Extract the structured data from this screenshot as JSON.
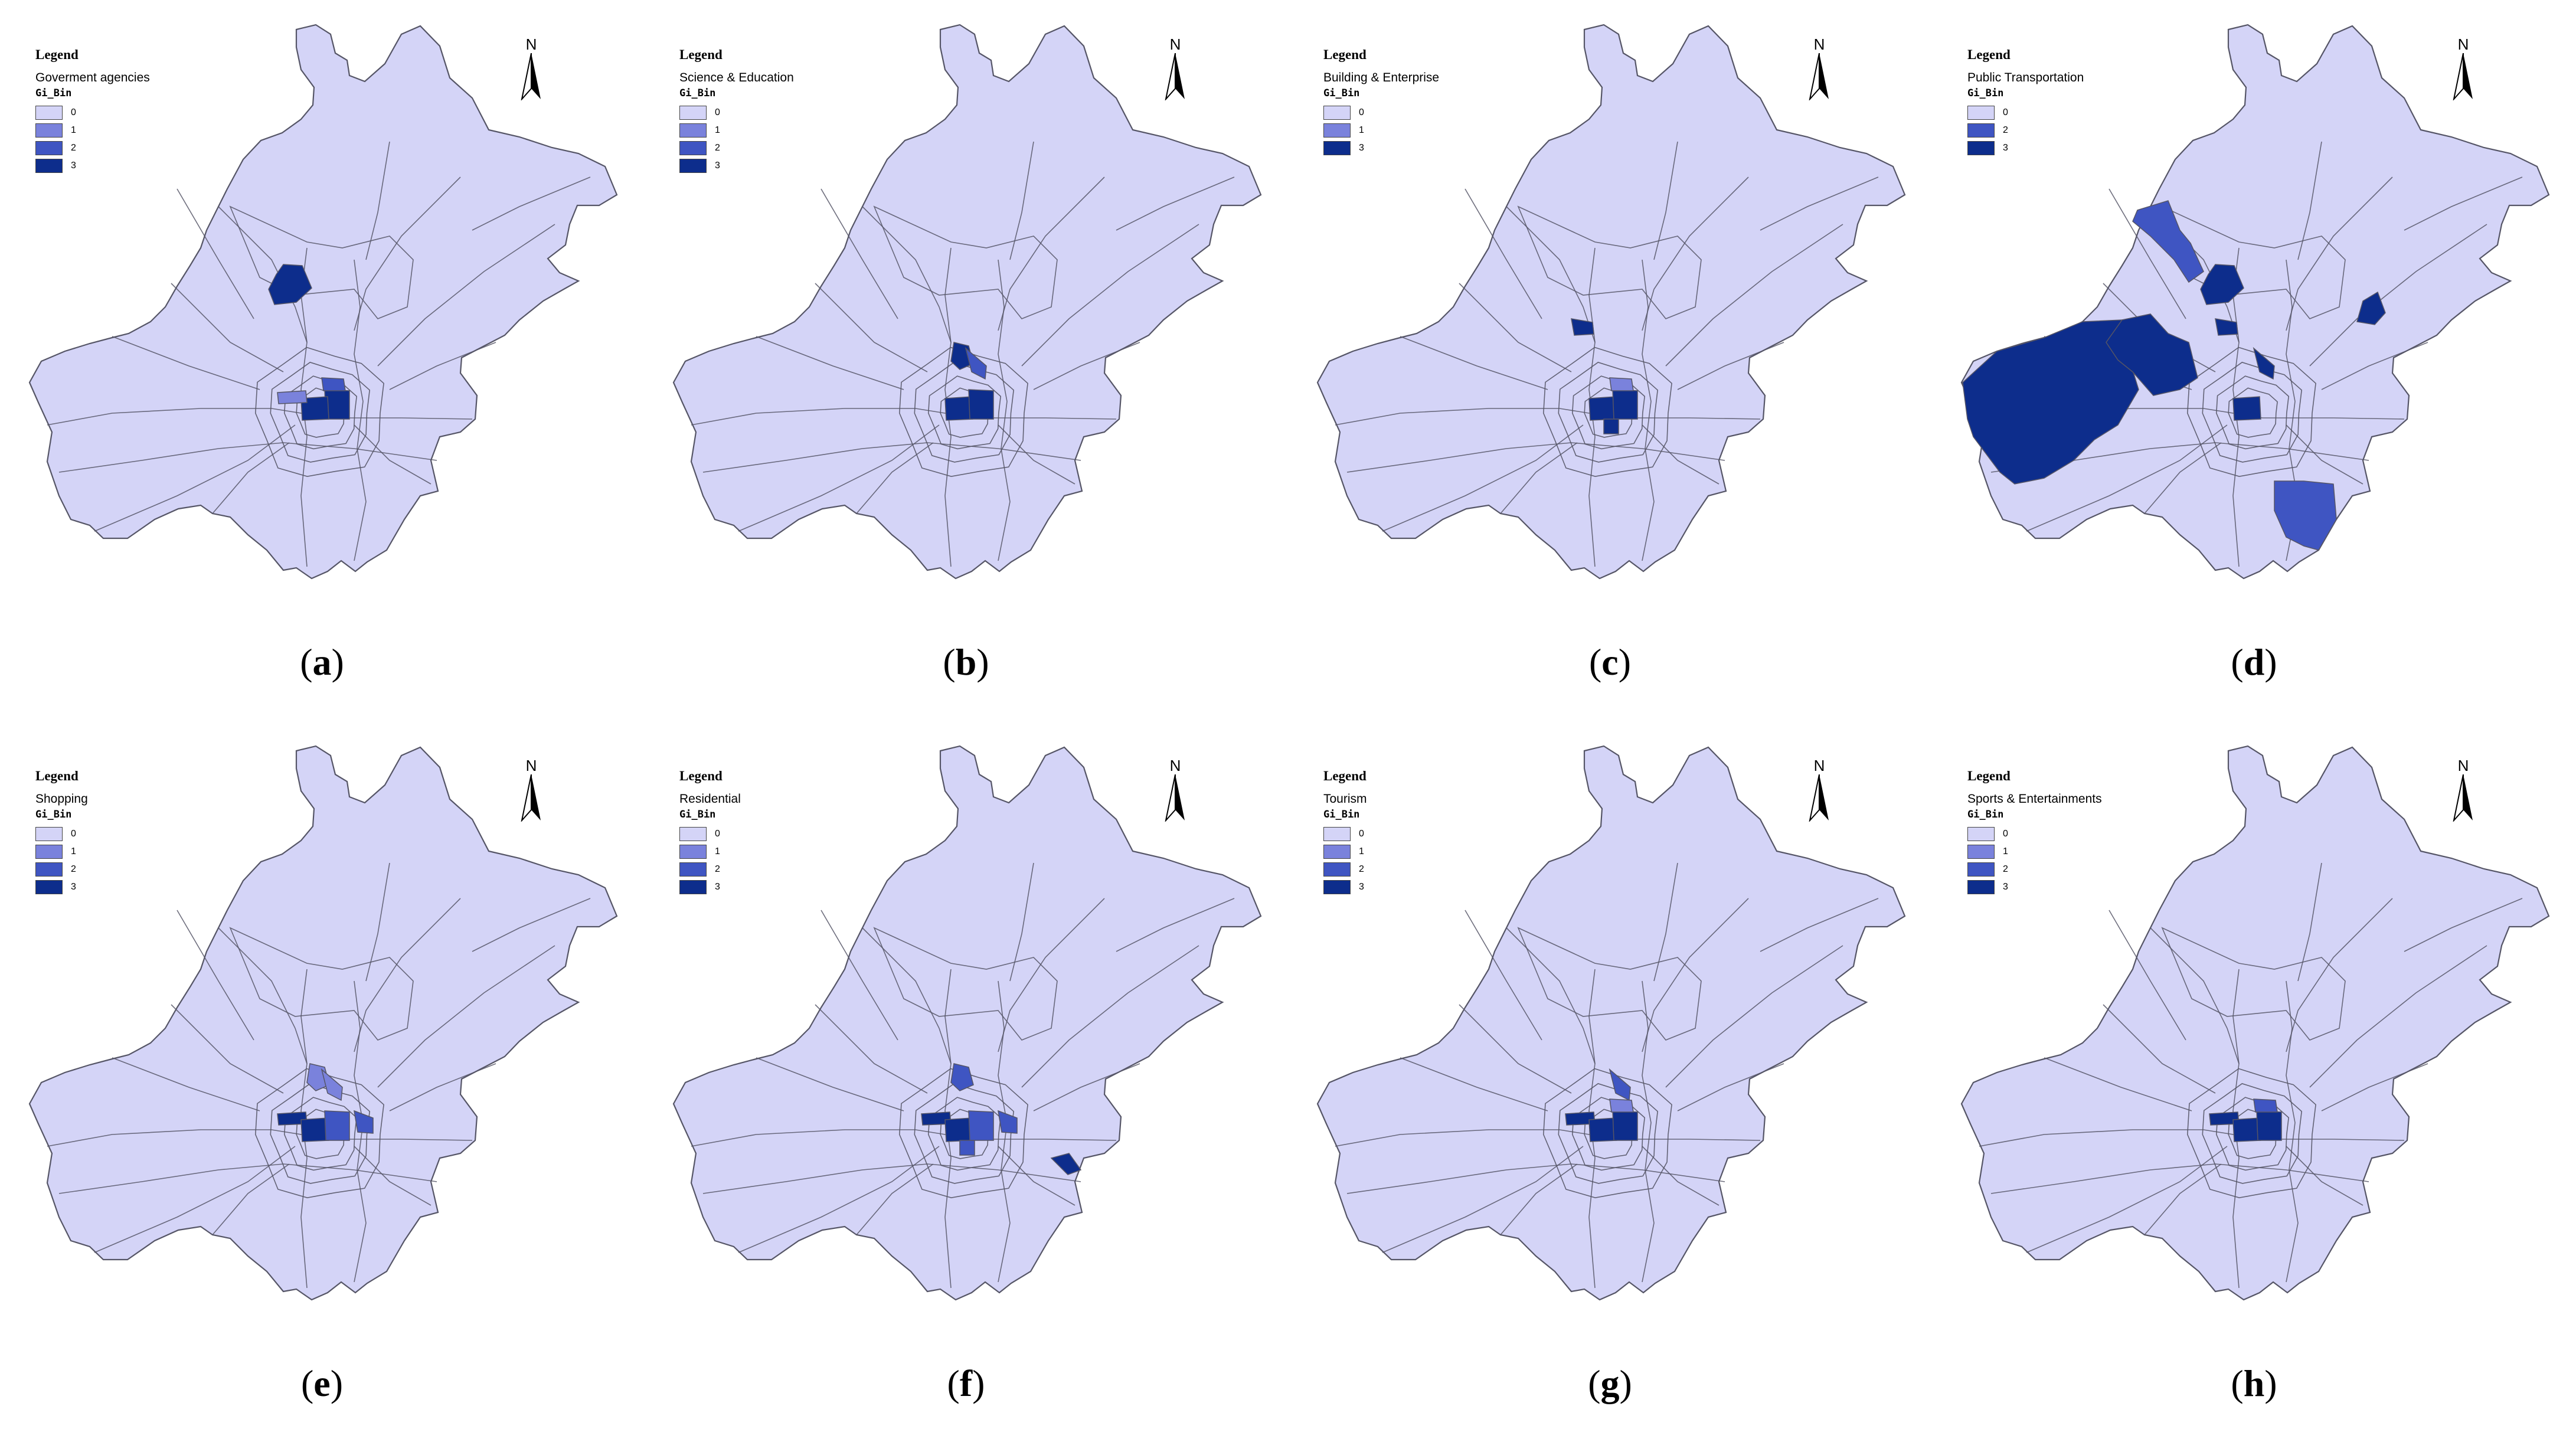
{
  "map_data": {
    "legend_heading": "Legend",
    "field_name": "Gi_Bin",
    "classes": [
      "0",
      "1",
      "2",
      "3"
    ],
    "class_colors": [
      "#d4d4f7",
      "#7a82dc",
      "#3f55c2",
      "#0d2d8c"
    ],
    "boundary_color": "#555566",
    "north_label": "N",
    "panels": [
      {
        "caption": "a",
        "layer": "Goverment agencies",
        "legend_classes": [
          "0",
          "1",
          "2",
          "3"
        ],
        "hotspots": [
          {
            "zone": "north-central-district",
            "gi_bin": 3
          },
          {
            "zone": "core-east",
            "gi_bin": 3
          },
          {
            "zone": "core-center",
            "gi_bin": 3
          },
          {
            "zone": "core-west",
            "gi_bin": 1
          },
          {
            "zone": "core-ne",
            "gi_bin": 2
          }
        ]
      },
      {
        "caption": "b",
        "layer": "Science & Education",
        "legend_classes": [
          "0",
          "1",
          "2",
          "3"
        ],
        "hotspots": [
          {
            "zone": "inner-north",
            "gi_bin": 3
          },
          {
            "zone": "inner-ne",
            "gi_bin": 2
          },
          {
            "zone": "core-center",
            "gi_bin": 3
          },
          {
            "zone": "core-east",
            "gi_bin": 3
          }
        ]
      },
      {
        "caption": "c",
        "layer": "Building & Enterprise",
        "legend_classes": [
          "0",
          "1",
          "3"
        ],
        "hotspots": [
          {
            "zone": "inner-nw",
            "gi_bin": 3
          },
          {
            "zone": "core-center",
            "gi_bin": 3
          },
          {
            "zone": "core-east",
            "gi_bin": 3
          },
          {
            "zone": "core-south",
            "gi_bin": 3
          },
          {
            "zone": "core-ne",
            "gi_bin": 1
          }
        ]
      },
      {
        "caption": "d",
        "layer": "Public Transportation",
        "legend_classes": [
          "0",
          "2",
          "3"
        ],
        "hotspots": [
          {
            "zone": "southwest-district",
            "gi_bin": 3
          },
          {
            "zone": "west-district",
            "gi_bin": 3
          },
          {
            "zone": "northwest-district",
            "gi_bin": 2
          },
          {
            "zone": "north-central-district",
            "gi_bin": 3
          },
          {
            "zone": "inner-nw",
            "gi_bin": 3
          },
          {
            "zone": "inner-ne",
            "gi_bin": 3
          },
          {
            "zone": "east-district",
            "gi_bin": 3
          },
          {
            "zone": "south-district",
            "gi_bin": 2
          },
          {
            "zone": "core-center",
            "gi_bin": 3
          }
        ]
      },
      {
        "caption": "e",
        "layer": "Shopping",
        "legend_classes": [
          "0",
          "1",
          "2",
          "3"
        ],
        "hotspots": [
          {
            "zone": "inner-north",
            "gi_bin": 1
          },
          {
            "zone": "inner-ne",
            "gi_bin": 1
          },
          {
            "zone": "core-west",
            "gi_bin": 3
          },
          {
            "zone": "core-center",
            "gi_bin": 3
          },
          {
            "zone": "core-east",
            "gi_bin": 2
          },
          {
            "zone": "inner-east",
            "gi_bin": 2
          }
        ]
      },
      {
        "caption": "f",
        "layer": "Residential",
        "legend_classes": [
          "0",
          "1",
          "2",
          "3"
        ],
        "hotspots": [
          {
            "zone": "inner-north",
            "gi_bin": 2
          },
          {
            "zone": "core-west",
            "gi_bin": 3
          },
          {
            "zone": "core-center",
            "gi_bin": 3
          },
          {
            "zone": "core-east",
            "gi_bin": 2
          },
          {
            "zone": "core-south",
            "gi_bin": 2
          },
          {
            "zone": "inner-east",
            "gi_bin": 2
          },
          {
            "zone": "east-patch",
            "gi_bin": 3
          }
        ]
      },
      {
        "caption": "g",
        "layer": "Tourism",
        "legend_classes": [
          "0",
          "1",
          "2",
          "3"
        ],
        "hotspots": [
          {
            "zone": "inner-ne",
            "gi_bin": 2
          },
          {
            "zone": "core-west",
            "gi_bin": 3
          },
          {
            "zone": "core-center",
            "gi_bin": 3
          },
          {
            "zone": "core-east",
            "gi_bin": 3
          },
          {
            "zone": "core-ne",
            "gi_bin": 1
          }
        ]
      },
      {
        "caption": "h",
        "layer": "Sports & Entertainments",
        "legend_classes": [
          "0",
          "1",
          "2",
          "3"
        ],
        "hotspots": [
          {
            "zone": "core-west",
            "gi_bin": 3
          },
          {
            "zone": "core-center",
            "gi_bin": 3
          },
          {
            "zone": "core-east",
            "gi_bin": 3
          },
          {
            "zone": "core-ne",
            "gi_bin": 2
          }
        ]
      }
    ]
  }
}
